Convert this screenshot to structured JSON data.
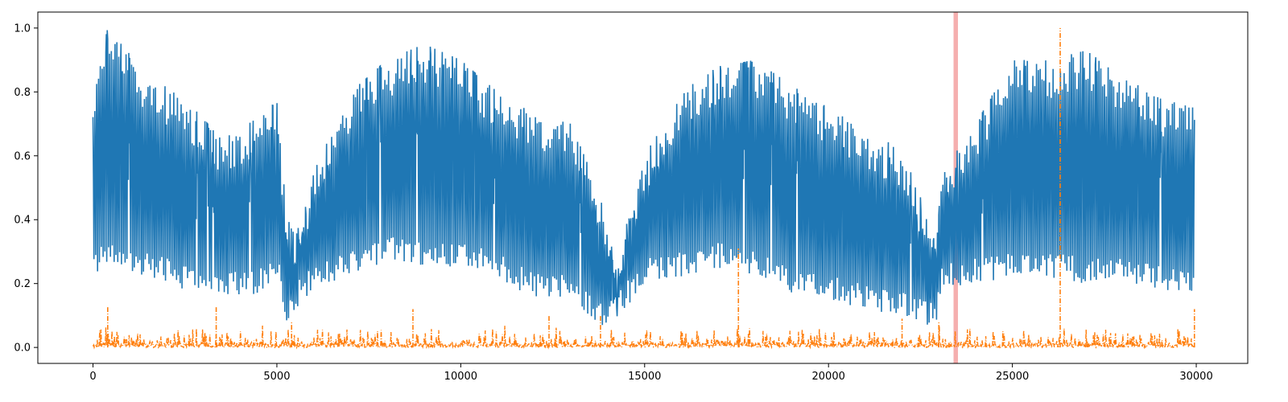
{
  "chart_data": {
    "type": "line",
    "title": "",
    "xlabel": "",
    "ylabel": "",
    "xlim": [
      -1500,
      31400
    ],
    "ylim": [
      -0.05,
      1.05
    ],
    "xticks": [
      0,
      5000,
      10000,
      15000,
      20000,
      25000,
      30000
    ],
    "xtick_labels": [
      "0",
      "5000",
      "10000",
      "15000",
      "20000",
      "25000",
      "30000"
    ],
    "yticks": [
      0.0,
      0.2,
      0.4,
      0.6,
      0.8,
      1.0
    ],
    "ytick_labels": [
      "0.0",
      "0.2",
      "0.4",
      "0.6",
      "0.8",
      "1.0"
    ],
    "grid": false,
    "legend": "none",
    "x_range": [
      0,
      29950
    ],
    "series": [
      {
        "color": "#1f77b4",
        "style": "solid",
        "description_points_x": [
          0,
          400,
          1500,
          2500,
          3500,
          4500,
          5000,
          5300,
          5500,
          6000,
          7000,
          8000,
          9000,
          10000,
          11000,
          12000,
          13000,
          13900,
          14200,
          15000,
          16000,
          17000,
          18000,
          19000,
          20000,
          21000,
          22000,
          22900,
          23100,
          24000,
          25000,
          26000,
          27000,
          28000,
          29000,
          29950
        ],
        "upper_envelope": [
          0.8,
          1.0,
          0.85,
          0.78,
          0.65,
          0.72,
          0.77,
          0.4,
          0.35,
          0.55,
          0.8,
          0.9,
          0.95,
          0.9,
          0.8,
          0.73,
          0.7,
          0.45,
          0.25,
          0.6,
          0.8,
          0.88,
          0.9,
          0.82,
          0.75,
          0.68,
          0.62,
          0.35,
          0.55,
          0.7,
          0.9,
          0.9,
          0.93,
          0.85,
          0.78,
          0.75
        ],
        "lower_envelope": [
          0.22,
          0.25,
          0.22,
          0.18,
          0.15,
          0.17,
          0.22,
          0.05,
          0.12,
          0.18,
          0.22,
          0.27,
          0.25,
          0.25,
          0.22,
          0.15,
          0.15,
          0.05,
          0.08,
          0.2,
          0.22,
          0.25,
          0.22,
          0.17,
          0.15,
          0.12,
          0.1,
          0.06,
          0.18,
          0.2,
          0.22,
          0.22,
          0.2,
          0.2,
          0.18,
          0.16
        ]
      },
      {
        "color": "#ff7f0e",
        "style": "dashdot",
        "baseline_max": 0.05,
        "spikes": [
          {
            "x": 400,
            "y": 0.13
          },
          {
            "x": 3350,
            "y": 0.13
          },
          {
            "x": 5400,
            "y": 0.08
          },
          {
            "x": 8700,
            "y": 0.12
          },
          {
            "x": 12400,
            "y": 0.1
          },
          {
            "x": 13800,
            "y": 0.1
          },
          {
            "x": 17550,
            "y": 0.31
          },
          {
            "x": 22000,
            "y": 0.09
          },
          {
            "x": 23000,
            "y": 0.08
          },
          {
            "x": 26300,
            "y": 1.0
          },
          {
            "x": 29950,
            "y": 0.12
          }
        ]
      }
    ],
    "highlight_band": {
      "x0": 23400,
      "x1": 23520,
      "color": "#f4a6a6"
    }
  }
}
